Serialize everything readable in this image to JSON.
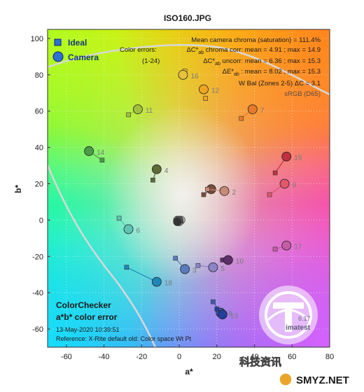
{
  "chart_data": {
    "type": "scatter",
    "title": "ISO160.JPG",
    "xlabel": "a*",
    "ylabel": "b*",
    "xlim": [
      -70,
      80
    ],
    "ylim": [
      -70,
      105
    ],
    "xticks": [
      -60,
      -40,
      -20,
      0,
      20,
      40,
      60,
      80
    ],
    "yticks": [
      -60,
      -40,
      -20,
      0,
      20,
      40,
      60,
      80,
      100
    ],
    "grid": "dotted",
    "legend": {
      "position": "top-left",
      "ideal": "Ideal",
      "camera": "Camera"
    },
    "stats": {
      "line1": "Mean camera chroma (saturation) = 111.4%",
      "errors_label": "Color errors:",
      "range_label": "(1-24)",
      "corr": {
        "prefix": "ΔC*",
        "sub": "ab",
        "text": " chroma corr:  mean = 4.91 ;  max = 14.9"
      },
      "uncorr": {
        "prefix": "ΔC*",
        "sub": "ab",
        "text": " uncorr:  mean = 6.36 ;  max = 15.3"
      },
      "de": {
        "prefix": "ΔE*",
        "sub": "ab",
        "text": " : mean = 8.02 ;  max = 15.3"
      },
      "wbal": "W Bal (Zones 2-5) ΔC = 3.1",
      "colorspace": "sRGB (D65)"
    },
    "bottom_left": {
      "line1": "ColorChecker",
      "line2": "a*b* color error",
      "date": "13-May-2020 10:39:51",
      "reference": "Reference: X-Rite default old: Color space Wt Pt"
    },
    "patches": [
      {
        "id": "1",
        "ideal": [
          13,
          14
        ],
        "camera": [
          17,
          17
        ],
        "color": "#7a4c3c"
      },
      {
        "id": "2",
        "ideal": [
          15,
          17
        ],
        "camera": [
          24,
          16
        ],
        "color": "#c88a74"
      },
      {
        "id": "3",
        "ideal": [
          -2,
          -21
        ],
        "camera": [
          3,
          -27
        ],
        "color": "#5a7bbf"
      },
      {
        "id": "4",
        "ideal": [
          -14,
          22
        ],
        "camera": [
          -12,
          28
        ],
        "color": "#5d6b39"
      },
      {
        "id": "5",
        "ideal": [
          10,
          -25
        ],
        "camera": [
          18,
          -26
        ],
        "color": "#8b84c7"
      },
      {
        "id": "6",
        "ideal": [
          -32,
          1
        ],
        "camera": [
          -27,
          -5
        ],
        "color": "#5fc4b3"
      },
      {
        "id": "7",
        "ideal": [
          33,
          56
        ],
        "camera": [
          39,
          61
        ],
        "color": "#e87a2c"
      },
      {
        "id": "8",
        "ideal": [
          18,
          -45
        ],
        "camera": [
          22,
          -51
        ],
        "color": "#3f5ab2"
      },
      {
        "id": "9",
        "ideal": [
          48,
          14
        ],
        "camera": [
          56,
          20
        ],
        "color": "#e3576b"
      },
      {
        "id": "10",
        "ideal": [
          23,
          -22
        ],
        "camera": [
          26,
          -22
        ],
        "color": "#5e2f6a"
      },
      {
        "id": "11",
        "ideal": [
          -27,
          58
        ],
        "camera": [
          -22,
          61
        ],
        "color": "#9fc13f"
      },
      {
        "id": "12",
        "ideal": [
          14,
          67
        ],
        "camera": [
          13,
          72
        ],
        "color": "#f0a423"
      },
      {
        "id": "13",
        "ideal": [
          20,
          -49
        ],
        "camera": [
          23,
          -52
        ],
        "color": "#233f99"
      },
      {
        "id": "14",
        "ideal": [
          -41,
          33
        ],
        "camera": [
          -48,
          38
        ],
        "color": "#4a9d47"
      },
      {
        "id": "15",
        "ideal": [
          51,
          26
        ],
        "camera": [
          57,
          35
        ],
        "color": "#c03040"
      },
      {
        "id": "16",
        "ideal": [
          3,
          82
        ],
        "camera": [
          2,
          80
        ],
        "color": "#e8c23a"
      },
      {
        "id": "17",
        "ideal": [
          51,
          -16
        ],
        "camera": [
          57,
          -14
        ],
        "color": "#c45ea3"
      },
      {
        "id": "18",
        "ideal": [
          -28,
          -26
        ],
        "camera": [
          -12,
          -34
        ],
        "color": "#1e88b8"
      }
    ],
    "neutral_points": [
      {
        "camera": [
          0,
          0
        ],
        "color": "#f2f2f2"
      },
      {
        "camera": [
          1,
          0
        ],
        "color": "#c8c8c8"
      },
      {
        "camera": [
          0,
          -1
        ],
        "color": "#a0a0a0"
      },
      {
        "camera": [
          -1,
          0
        ],
        "color": "#7a7a7a"
      },
      {
        "camera": [
          0,
          0
        ],
        "color": "#555555"
      },
      {
        "camera": [
          -1,
          -1
        ],
        "color": "#343434"
      }
    ],
    "extra_labels": [
      "6.17",
      "imatest"
    ]
  },
  "watermark": {
    "site": "SMYZ.NET",
    "cn": "科技资讯"
  }
}
